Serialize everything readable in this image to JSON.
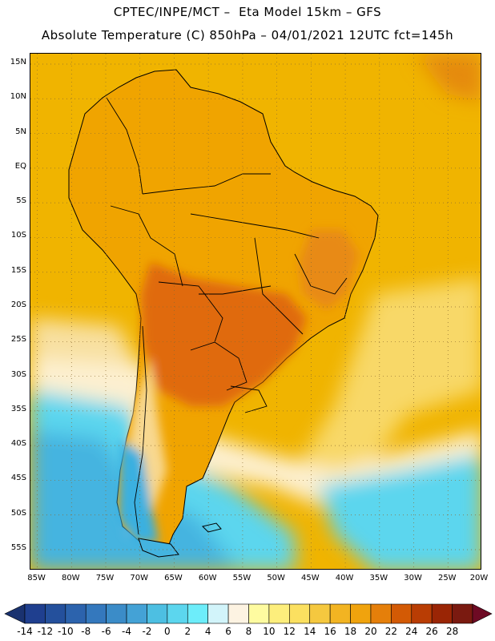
{
  "header": {
    "line1": "CPTEC/INPE/MCT –  Eta Model 15km – GFS",
    "line2": "Absolute Temperature (C) 850hPa – 04/01/2021 12UTC fct=145h"
  },
  "map": {
    "region": "South America",
    "lat_labels": [
      "15N",
      "10N",
      "5N",
      "EQ",
      "5S",
      "10S",
      "15S",
      "20S",
      "25S",
      "30S",
      "35S",
      "40S",
      "45S",
      "50S",
      "55S"
    ],
    "lon_labels": [
      "85W",
      "80W",
      "75W",
      "70W",
      "65W",
      "60W",
      "55W",
      "50W",
      "45W",
      "40W",
      "35W",
      "30W",
      "25W",
      "20W"
    ],
    "lat_range": [
      16.5,
      -58
    ],
    "lon_range": [
      -86,
      -20
    ],
    "grid": "dotted",
    "ocean_fill": "#f0b400",
    "land_fill": "#f0a400",
    "hot_fill": "#e06a08",
    "cold_fill": "#2fc0e6"
  },
  "colorbar": {
    "labels": [
      "-14",
      "-12",
      "-10",
      "-8",
      "-6",
      "-4",
      "-2",
      "0",
      "2",
      "4",
      "6",
      "8",
      "10",
      "12",
      "14",
      "16",
      "18",
      "20",
      "22",
      "24",
      "26",
      "28"
    ],
    "colors": [
      "#1f3f8f",
      "#24509c",
      "#2c63ad",
      "#3478bd",
      "#3b8cc8",
      "#44a2d6",
      "#4dbfe2",
      "#5cd6ee",
      "#6dedfa",
      "#d2f4fa",
      "#fdf3e2",
      "#fefba0",
      "#fdee7c",
      "#fbe060",
      "#f5c83f",
      "#f2b422",
      "#f0a30d",
      "#e57f0a",
      "#d35a05",
      "#b93d04",
      "#9a2505",
      "#7a1a10"
    ],
    "min_arrow_color": "#1a3270",
    "max_arrow_color": "#6e0a24"
  }
}
